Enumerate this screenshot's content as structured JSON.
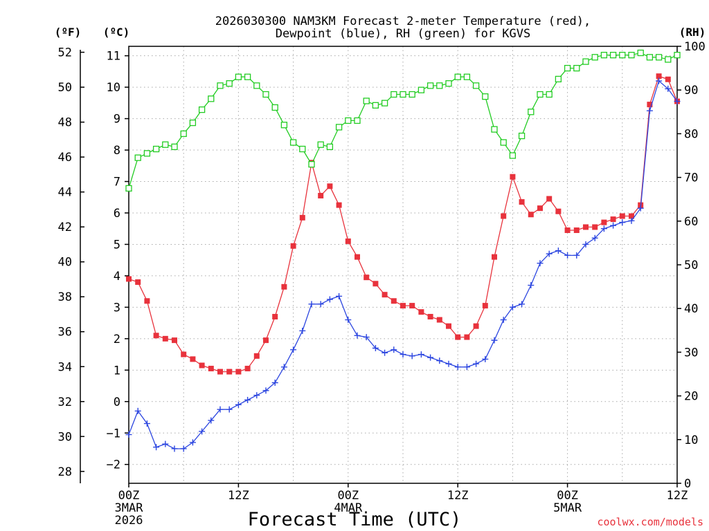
{
  "chart_data": {
    "type": "line",
    "title_line1": "2026030300 NAM3KM Forecast 2-meter Temperature (red),",
    "title_line2": "Dewpoint (blue), RH (green) for KGVS",
    "xlabel": "Forecast Time (UTC)",
    "unit_f": "(ºF)",
    "unit_c": "(ºC)",
    "unit_rh": "(RH)",
    "credit": "coolwx.com/models",
    "x_range_hours": [
      0,
      60
    ],
    "x_ticks": [
      {
        "h": 0,
        "label": "00Z",
        "sub1": "3MAR",
        "sub2": "2026"
      },
      {
        "h": 12,
        "label": "12Z",
        "sub1": "",
        "sub2": ""
      },
      {
        "h": 24,
        "label": "00Z",
        "sub1": "4MAR",
        "sub2": ""
      },
      {
        "h": 36,
        "label": "12Z",
        "sub1": "",
        "sub2": ""
      },
      {
        "h": 48,
        "label": "00Z",
        "sub1": "5MAR",
        "sub2": ""
      },
      {
        "h": 60,
        "label": "12Z",
        "sub1": "",
        "sub2": ""
      }
    ],
    "celsius_axis": {
      "range": [
        -2.6,
        11.3
      ],
      "ticks": [
        -2,
        -1,
        0,
        1,
        2,
        3,
        4,
        5,
        6,
        7,
        8,
        9,
        10,
        11
      ]
    },
    "fahrenheit_axis": {
      "ticks": [
        28,
        30,
        32,
        34,
        36,
        38,
        40,
        42,
        44,
        46,
        48,
        50,
        52
      ]
    },
    "rh_axis": {
      "range": [
        0,
        100
      ],
      "ticks": [
        0,
        10,
        20,
        30,
        40,
        50,
        60,
        70,
        80,
        90,
        100
      ]
    },
    "series": [
      {
        "name": "Temperature",
        "unit": "C",
        "color": "#e8323c",
        "marker": "filled-square",
        "values": [
          3.9,
          3.8,
          3.2,
          2.1,
          2.0,
          1.95,
          1.5,
          1.35,
          1.15,
          1.05,
          0.95,
          0.95,
          0.95,
          1.05,
          1.45,
          1.95,
          2.7,
          3.65,
          4.95,
          5.85,
          7.6,
          6.55,
          6.85,
          6.25,
          5.1,
          4.6,
          3.95,
          3.75,
          3.4,
          3.2,
          3.05,
          3.05,
          2.85,
          2.7,
          2.6,
          2.4,
          2.05,
          2.05,
          2.4,
          3.05,
          4.6,
          5.9,
          7.15,
          6.35,
          5.95,
          6.15,
          6.45,
          6.05,
          5.45,
          5.45,
          5.55,
          5.55,
          5.7,
          5.8,
          5.9,
          5.9,
          6.25,
          9.45,
          10.35,
          10.25,
          9.55
        ]
      },
      {
        "name": "Dewpoint",
        "unit": "C",
        "color": "#2c46e0",
        "marker": "plus",
        "values": [
          -1.05,
          -0.3,
          -0.7,
          -1.45,
          -1.35,
          -1.5,
          -1.5,
          -1.3,
          -0.95,
          -0.6,
          -0.25,
          -0.25,
          -0.1,
          0.05,
          0.2,
          0.35,
          0.6,
          1.1,
          1.65,
          2.25,
          3.1,
          3.1,
          3.25,
          3.35,
          2.6,
          2.1,
          2.05,
          1.7,
          1.55,
          1.65,
          1.5,
          1.45,
          1.5,
          1.4,
          1.3,
          1.2,
          1.1,
          1.1,
          1.2,
          1.35,
          1.95,
          2.6,
          3.0,
          3.1,
          3.7,
          4.4,
          4.7,
          4.8,
          4.65,
          4.65,
          5.0,
          5.2,
          5.5,
          5.6,
          5.7,
          5.75,
          6.15,
          9.25,
          10.2,
          9.95,
          9.55
        ]
      },
      {
        "name": "RH",
        "unit": "%",
        "color": "#22cc22",
        "marker": "open-square",
        "values": [
          67.5,
          74.5,
          75.5,
          76.5,
          77.5,
          77.0,
          80.0,
          82.5,
          85.5,
          88.0,
          91.0,
          91.5,
          93.0,
          93.0,
          91.0,
          89.0,
          86.0,
          82.0,
          78.0,
          76.5,
          73.0,
          77.5,
          77.0,
          81.5,
          83.0,
          83.0,
          87.5,
          86.5,
          87.0,
          89.0,
          89.0,
          89.0,
          90.0,
          91.0,
          91.0,
          91.5,
          93.0,
          93.0,
          91.0,
          88.5,
          81.0,
          78.0,
          75.0,
          79.5,
          85.0,
          89.0,
          89.0,
          92.5,
          95.0,
          95.0,
          96.5,
          97.5,
          98.0,
          98.0,
          98.0,
          98.0,
          98.5,
          97.5,
          97.5,
          97.0,
          98.0
        ]
      }
    ]
  }
}
